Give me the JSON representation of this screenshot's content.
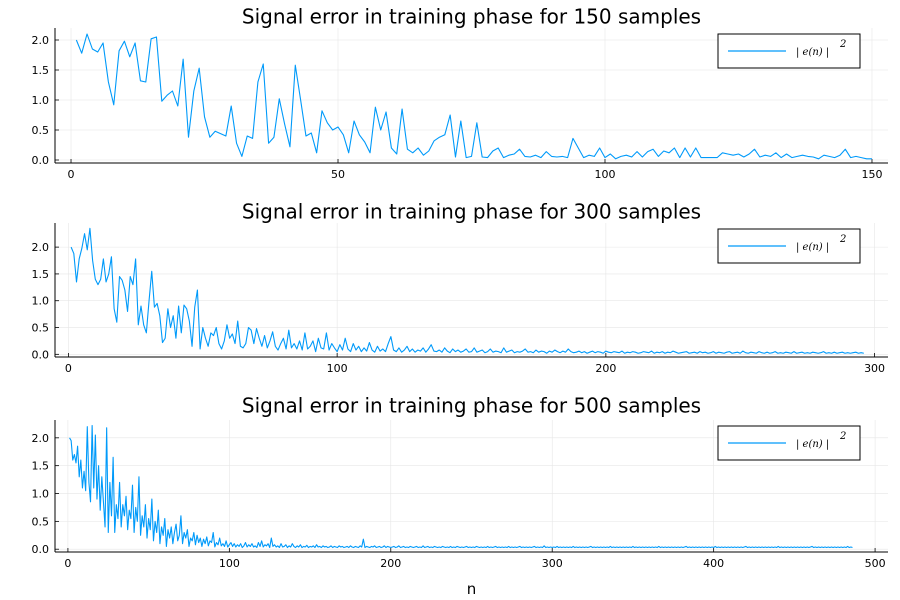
{
  "chart_data": [
    {
      "type": "line",
      "title": "Signal error in training phase for 150 samples",
      "xlim": [
        -3,
        153
      ],
      "ylim": [
        -0.05,
        2.2
      ],
      "xticks": [
        0,
        50,
        100,
        150
      ],
      "xtick_labels": [
        "0",
        "50",
        "100",
        "150"
      ],
      "yticks": [
        0.0,
        0.5,
        1.0,
        1.5,
        2.0
      ],
      "ytick_labels": [
        "0.0",
        "0.5",
        "1.0",
        "1.5",
        "2.0"
      ],
      "xlabel": "",
      "legend_position": "top-right",
      "series": [
        {
          "name": "| e(n) |",
          "name_superscript": "2",
          "color": "#009AFA",
          "x_start": 1,
          "y": [
            2.0,
            1.78,
            2.1,
            1.85,
            1.8,
            1.95,
            1.3,
            0.92,
            1.82,
            1.98,
            1.72,
            1.95,
            1.32,
            1.3,
            2.02,
            2.05,
            0.98,
            1.08,
            1.15,
            0.9,
            1.68,
            0.38,
            1.15,
            1.53,
            0.72,
            0.38,
            0.48,
            0.44,
            0.4,
            0.9,
            0.28,
            0.06,
            0.4,
            0.36,
            1.3,
            1.6,
            0.28,
            0.38,
            1.02,
            0.6,
            0.22,
            1.58,
            1.0,
            0.4,
            0.45,
            0.12,
            0.82,
            0.62,
            0.5,
            0.55,
            0.42,
            0.12,
            0.65,
            0.42,
            0.3,
            0.12,
            0.88,
            0.5,
            0.8,
            0.2,
            0.1,
            0.85,
            0.18,
            0.12,
            0.2,
            0.08,
            0.15,
            0.32,
            0.38,
            0.42,
            0.75,
            0.05,
            0.65,
            0.04,
            0.06,
            0.62,
            0.05,
            0.04,
            0.15,
            0.2,
            0.04,
            0.08,
            0.1,
            0.18,
            0.06,
            0.05,
            0.08,
            0.04,
            0.14,
            0.06,
            0.05,
            0.06,
            0.04,
            0.36,
            0.2,
            0.04,
            0.08,
            0.06,
            0.2,
            0.04,
            0.1,
            0.02,
            0.06,
            0.08,
            0.05,
            0.14,
            0.05,
            0.14,
            0.18,
            0.06,
            0.15,
            0.12,
            0.2,
            0.04,
            0.2,
            0.05,
            0.2,
            0.04,
            0.04,
            0.04,
            0.04,
            0.12,
            0.1,
            0.08,
            0.1,
            0.05,
            0.1,
            0.18,
            0.05,
            0.08,
            0.06,
            0.12,
            0.04,
            0.1,
            0.04,
            0.06,
            0.08,
            0.06,
            0.05,
            0.02,
            0.08,
            0.06,
            0.04,
            0.08,
            0.18,
            0.04,
            0.06,
            0.04,
            0.02,
            0.02
          ]
        }
      ]
    },
    {
      "type": "line",
      "title": "Signal error in training phase for 300 samples",
      "xlim": [
        -5,
        305
      ],
      "ylim": [
        -0.05,
        2.45
      ],
      "xticks": [
        0,
        100,
        200,
        300
      ],
      "xtick_labels": [
        "0",
        "100",
        "200",
        "300"
      ],
      "yticks": [
        0.0,
        0.5,
        1.0,
        1.5,
        2.0
      ],
      "ytick_labels": [
        "0.0",
        "0.5",
        "1.0",
        "1.5",
        "2.0"
      ],
      "xlabel": "",
      "legend_position": "top-right",
      "series": [
        {
          "name": "| e(n) |",
          "name_superscript": "2",
          "color": "#009AFA",
          "x_start": 1,
          "y": [
            2.0,
            1.88,
            1.35,
            1.78,
            1.98,
            2.25,
            1.95,
            2.35,
            1.75,
            1.4,
            1.3,
            1.4,
            1.78,
            1.35,
            1.5,
            1.82,
            0.85,
            0.6,
            1.45,
            1.38,
            1.2,
            0.8,
            1.45,
            1.3,
            1.78,
            0.55,
            0.9,
            0.55,
            0.4,
            1.0,
            1.55,
            0.88,
            0.95,
            0.72,
            0.22,
            0.3,
            0.85,
            0.5,
            0.72,
            0.3,
            0.9,
            0.4,
            0.92,
            0.85,
            0.62,
            0.15,
            0.88,
            1.2,
            0.1,
            0.5,
            0.3,
            0.15,
            0.4,
            0.35,
            0.5,
            0.2,
            0.1,
            0.25,
            0.55,
            0.3,
            0.38,
            0.2,
            0.62,
            0.15,
            0.12,
            0.2,
            0.5,
            0.45,
            0.2,
            0.48,
            0.3,
            0.15,
            0.35,
            0.12,
            0.25,
            0.42,
            0.15,
            0.08,
            0.2,
            0.3,
            0.1,
            0.45,
            0.12,
            0.2,
            0.1,
            0.25,
            0.08,
            0.4,
            0.1,
            0.15,
            0.25,
            0.05,
            0.3,
            0.12,
            0.1,
            0.4,
            0.08,
            0.2,
            0.12,
            0.05,
            0.18,
            0.08,
            0.3,
            0.1,
            0.05,
            0.2,
            0.08,
            0.15,
            0.05,
            0.12,
            0.06,
            0.22,
            0.08,
            0.04,
            0.15,
            0.06,
            0.1,
            0.05,
            0.2,
            0.33,
            0.08,
            0.05,
            0.12,
            0.04,
            0.08,
            0.15,
            0.05,
            0.1,
            0.04,
            0.08,
            0.06,
            0.12,
            0.04,
            0.1,
            0.18,
            0.06,
            0.05,
            0.08,
            0.04,
            0.12,
            0.06,
            0.03,
            0.1,
            0.05,
            0.08,
            0.04,
            0.06,
            0.1,
            0.04,
            0.05,
            0.12,
            0.04,
            0.06,
            0.08,
            0.03,
            0.05,
            0.1,
            0.04,
            0.06,
            0.05,
            0.03,
            0.12,
            0.04,
            0.06,
            0.08,
            0.03,
            0.05,
            0.04,
            0.06,
            0.1,
            0.04,
            0.05,
            0.03,
            0.08,
            0.04,
            0.06,
            0.05,
            0.02,
            0.06,
            0.04,
            0.08,
            0.05,
            0.03,
            0.06,
            0.04,
            0.1,
            0.05,
            0.03,
            0.04,
            0.06,
            0.03,
            0.05,
            0.02,
            0.04,
            0.06,
            0.03,
            0.05,
            0.04,
            0.02,
            0.06,
            0.04,
            0.03,
            0.05,
            0.04,
            0.03,
            0.06,
            0.02,
            0.04,
            0.03,
            0.05,
            0.04,
            0.02,
            0.03,
            0.05,
            0.04,
            0.03,
            0.06,
            0.02,
            0.04,
            0.03,
            0.05,
            0.02,
            0.04,
            0.03,
            0.06,
            0.04,
            0.02,
            0.03,
            0.04,
            0.05,
            0.02,
            0.03,
            0.04,
            0.02,
            0.05,
            0.03,
            0.04,
            0.02,
            0.03,
            0.05,
            0.02,
            0.04,
            0.03,
            0.02,
            0.04,
            0.05,
            0.02,
            0.03,
            0.04,
            0.02,
            0.06,
            0.03,
            0.02,
            0.04,
            0.03,
            0.02,
            0.05,
            0.03,
            0.02,
            0.04,
            0.02,
            0.03,
            0.05,
            0.02,
            0.03,
            0.02,
            0.04,
            0.03,
            0.02,
            0.05,
            0.02,
            0.03,
            0.04,
            0.02,
            0.03,
            0.02,
            0.04,
            0.03,
            0.02,
            0.03,
            0.05,
            0.02,
            0.03,
            0.02,
            0.04,
            0.02,
            0.03,
            0.04,
            0.02,
            0.03,
            0.02,
            0.03,
            0.04,
            0.02,
            0.03,
            0.02
          ]
        }
      ]
    },
    {
      "type": "line",
      "title": "Signal error in training phase for 500 samples",
      "xlim": [
        -8,
        508
      ],
      "ylim": [
        -0.05,
        2.32
      ],
      "xticks": [
        0,
        100,
        200,
        300,
        400,
        500
      ],
      "xtick_labels": [
        "0",
        "100",
        "200",
        "300",
        "400",
        "500"
      ],
      "yticks": [
        0.0,
        0.5,
        1.0,
        1.5,
        2.0
      ],
      "ytick_labels": [
        "0.0",
        "0.5",
        "1.0",
        "1.5",
        "2.0"
      ],
      "xlabel": "n",
      "legend_position": "top-right",
      "series": [
        {
          "name": "| e(n) |",
          "name_superscript": "2",
          "color": "#009AFA",
          "x_start": 1,
          "y": [
            2.0,
            1.95,
            1.6,
            1.7,
            1.55,
            1.85,
            1.3,
            1.6,
            1.1,
            1.4,
            1.05,
            2.2,
            1.2,
            0.85,
            2.22,
            1.1,
            2.05,
            0.9,
            1.5,
            0.7,
            1.3,
            0.85,
            0.4,
            2.18,
            0.3,
            1.2,
            0.6,
            1.65,
            0.3,
            0.8,
            0.55,
            1.2,
            0.4,
            0.8,
            0.6,
            0.95,
            0.35,
            0.7,
            0.55,
            1.15,
            0.3,
            0.75,
            0.5,
            1.3,
            0.25,
            0.6,
            0.4,
            0.8,
            0.2,
            0.55,
            0.35,
            0.9,
            0.15,
            0.5,
            0.3,
            0.7,
            0.1,
            0.4,
            0.25,
            0.55,
            0.05,
            0.35,
            0.2,
            0.4,
            0.1,
            0.3,
            0.45,
            0.15,
            0.25,
            0.6,
            0.1,
            0.3,
            0.2,
            0.35,
            0.05,
            0.2,
            0.15,
            0.3,
            0.08,
            0.25,
            0.12,
            0.2,
            0.05,
            0.18,
            0.1,
            0.22,
            0.06,
            0.15,
            0.12,
            0.3,
            0.04,
            0.12,
            0.08,
            0.2,
            0.06,
            0.1,
            0.05,
            0.15,
            0.04,
            0.08,
            0.12,
            0.05,
            0.1,
            0.04,
            0.08,
            0.05,
            0.1,
            0.03,
            0.06,
            0.12,
            0.04,
            0.08,
            0.05,
            0.1,
            0.04,
            0.06,
            0.03,
            0.12,
            0.05,
            0.15,
            0.04,
            0.08,
            0.06,
            0.1,
            0.03,
            0.2,
            0.05,
            0.08,
            0.04,
            0.06,
            0.03,
            0.1,
            0.04,
            0.05,
            0.08,
            0.03,
            0.06,
            0.04,
            0.1,
            0.05,
            0.03,
            0.06,
            0.04,
            0.08,
            0.03,
            0.05,
            0.04,
            0.07,
            0.03,
            0.05,
            0.04,
            0.06,
            0.03,
            0.08,
            0.04,
            0.05,
            0.03,
            0.06,
            0.04,
            0.05,
            0.03,
            0.04,
            0.06,
            0.03,
            0.05,
            0.04,
            0.03,
            0.06,
            0.04,
            0.05,
            0.03,
            0.04,
            0.05,
            0.03,
            0.06,
            0.04,
            0.03,
            0.05,
            0.04,
            0.03,
            0.06,
            0.04,
            0.18,
            0.03,
            0.05,
            0.04,
            0.03,
            0.05,
            0.04,
            0.06,
            0.03,
            0.04,
            0.05,
            0.03,
            0.04,
            0.06,
            0.03,
            0.05,
            0.04,
            0.03,
            0.04,
            0.05,
            0.03,
            0.04,
            0.06,
            0.03,
            0.04,
            0.05,
            0.03,
            0.04,
            0.03,
            0.05,
            0.04,
            0.03,
            0.04,
            0.05,
            0.03,
            0.04,
            0.03,
            0.06,
            0.03,
            0.04,
            0.05,
            0.03,
            0.04,
            0.03,
            0.05,
            0.04,
            0.03,
            0.04,
            0.03,
            0.05,
            0.04,
            0.03,
            0.04,
            0.03,
            0.05,
            0.03,
            0.04,
            0.03,
            0.05,
            0.04,
            0.03,
            0.04,
            0.03,
            0.04,
            0.05,
            0.03,
            0.04,
            0.03,
            0.04,
            0.03,
            0.05,
            0.04,
            0.03,
            0.04,
            0.03,
            0.04,
            0.03,
            0.05,
            0.03,
            0.04,
            0.03,
            0.04,
            0.05,
            0.03,
            0.04,
            0.03,
            0.04,
            0.03,
            0.04,
            0.03,
            0.05,
            0.03,
            0.04,
            0.03,
            0.04,
            0.03,
            0.04,
            0.05,
            0.03,
            0.04,
            0.03,
            0.04,
            0.03,
            0.04,
            0.03,
            0.04,
            0.05,
            0.03,
            0.04,
            0.03,
            0.04,
            0.03,
            0.06,
            0.03,
            0.04,
            0.03,
            0.04,
            0.03,
            0.04,
            0.03,
            0.05,
            0.03,
            0.04,
            0.03,
            0.04,
            0.03,
            0.04,
            0.03,
            0.04,
            0.03,
            0.05,
            0.03,
            0.04,
            0.03,
            0.04,
            0.03,
            0.04,
            0.03,
            0.04,
            0.03,
            0.04,
            0.05,
            0.03,
            0.04,
            0.03,
            0.04,
            0.03,
            0.04,
            0.03,
            0.04,
            0.03,
            0.04,
            0.03,
            0.05,
            0.03,
            0.04,
            0.03,
            0.04,
            0.03,
            0.04,
            0.03,
            0.04,
            0.03,
            0.04,
            0.03,
            0.04,
            0.03,
            0.05,
            0.03,
            0.04,
            0.03,
            0.04,
            0.03,
            0.04,
            0.03,
            0.04,
            0.03,
            0.04,
            0.03,
            0.04,
            0.03,
            0.04,
            0.03,
            0.05,
            0.03,
            0.04,
            0.03,
            0.04,
            0.03,
            0.04,
            0.03,
            0.04,
            0.03,
            0.04,
            0.03,
            0.04,
            0.03,
            0.04,
            0.03,
            0.04,
            0.05,
            0.03,
            0.04,
            0.03,
            0.04,
            0.03,
            0.04,
            0.03,
            0.04,
            0.03,
            0.04,
            0.03,
            0.04,
            0.03,
            0.04,
            0.03,
            0.04,
            0.03,
            0.05,
            0.03,
            0.04,
            0.03,
            0.04,
            0.03,
            0.04,
            0.03,
            0.04,
            0.03,
            0.04,
            0.03,
            0.04,
            0.03,
            0.04,
            0.03,
            0.04,
            0.03,
            0.04,
            0.05,
            0.03,
            0.04,
            0.03,
            0.04,
            0.03,
            0.04,
            0.03,
            0.04,
            0.03,
            0.04,
            0.03,
            0.04,
            0.03,
            0.04,
            0.03,
            0.04,
            0.03,
            0.04,
            0.03,
            0.05,
            0.03,
            0.04,
            0.03,
            0.04,
            0.03,
            0.04,
            0.03,
            0.04,
            0.03,
            0.04,
            0.03,
            0.04,
            0.03,
            0.04,
            0.03,
            0.04,
            0.03,
            0.04,
            0.03,
            0.04,
            0.05,
            0.03,
            0.04,
            0.03,
            0.04,
            0.03,
            0.04,
            0.03,
            0.04,
            0.03,
            0.04,
            0.03,
            0.04,
            0.03,
            0.04,
            0.03,
            0.04,
            0.03,
            0.04,
            0.03,
            0.04,
            0.03,
            0.05,
            0.03,
            0.04,
            0.03
          ]
        }
      ]
    }
  ]
}
